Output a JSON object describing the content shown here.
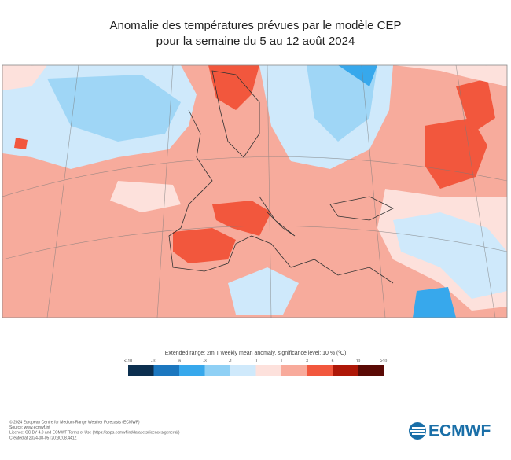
{
  "header": {
    "title_lines": [
      "Anomalie des températures prévues par le modèle CEP",
      "pour la semaine du 5 au 12 août 2024"
    ]
  },
  "legend": {
    "title": "Extended range: 2m T weekly mean anomaly, significance level: 10 % (ºC)",
    "labels": [
      "<-10",
      "-10",
      "-6",
      "-3",
      "-1",
      "0",
      "1",
      "3",
      "6",
      "10",
      ">10"
    ],
    "colors": [
      "#0c2f4f",
      "#1c77bf",
      "#37a8ec",
      "#8fd0f5",
      "#cfe9fb",
      "#fde1dc",
      "#f8aa9b",
      "#f2573d",
      "#ae1707",
      "#5a0a05"
    ]
  },
  "footer": {
    "lines": [
      "© 2024 European Centre for Medium-Range Weather Forecasts (ECMWF)",
      "Source: www.ecmwf.int",
      "Licence: CC BY 4.0 and ECMWF Terms of Use (https://apps.ecmwf.int/datasets/licences/general/)",
      "Created at 2024-08-05T20:30:08.441Z"
    ],
    "logo": "ECMWF"
  }
}
